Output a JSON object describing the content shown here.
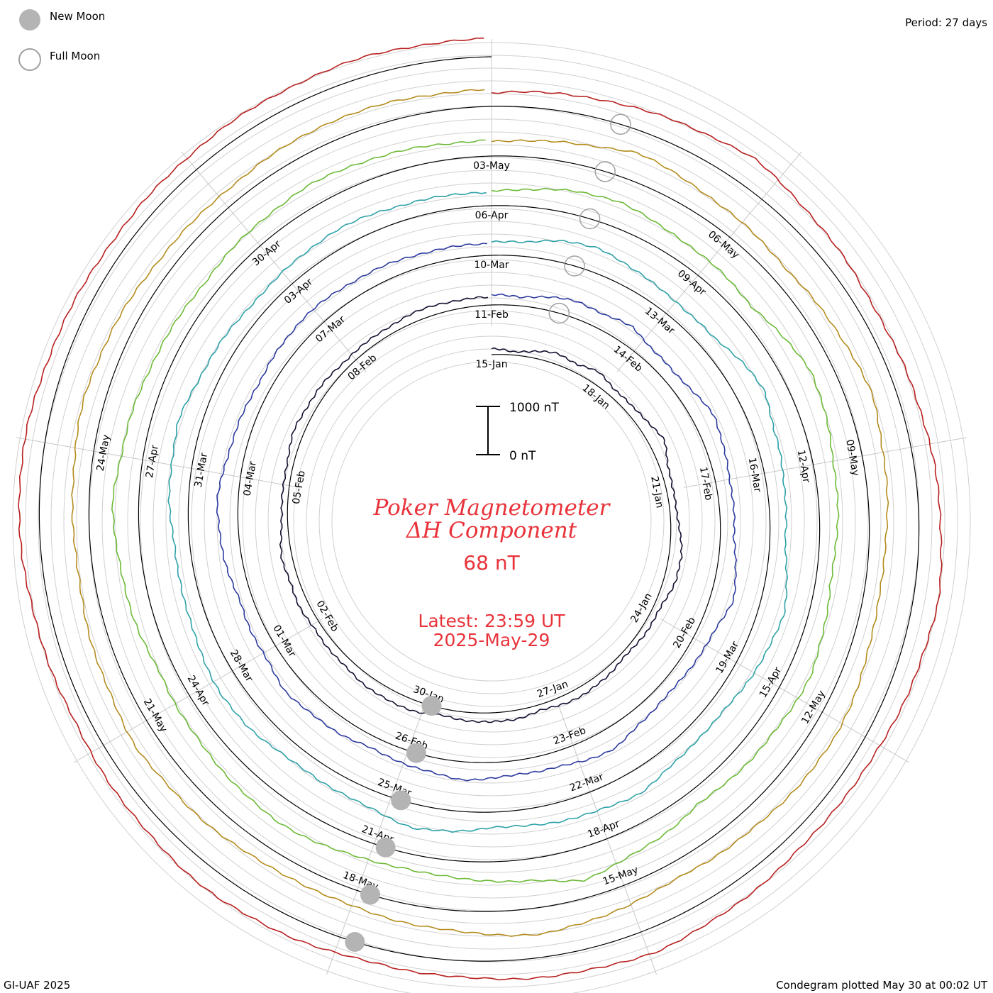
{
  "legend": {
    "new_moon_label": "New Moon",
    "full_moon_label": "Full Moon",
    "new_moon_fill": "#b4b4b4",
    "full_moon_stroke": "#a0a0a0"
  },
  "period_label": "Period: 27 days",
  "footer": {
    "credit": "GI-UAF 2025",
    "plotted": "Condegram plotted May 30 at 00:02 UT"
  },
  "title": {
    "line1": "Poker Magnetometer",
    "line2": "ΔH Component",
    "value": "68 nT",
    "latest": "Latest: 23:59 UT",
    "date": "2025-May-29",
    "color": "#e8333a"
  },
  "scale_bar": {
    "top_label": "1000 nT",
    "bottom_label": "0 nT"
  },
  "chart_data": {
    "type": "line",
    "period_days": 27,
    "units": "nT",
    "scale_nt": [
      0,
      1000
    ],
    "series": [
      {
        "color": "#141232",
        "values": [
          120,
          60,
          140,
          210,
          170,
          240,
          160,
          150,
          220,
          300,
          180,
          120,
          140,
          180,
          260,
          240,
          150,
          130,
          110,
          90,
          140,
          180,
          150,
          120,
          170,
          190,
          160,
          140,
          200,
          230,
          210,
          180,
          160,
          150,
          190,
          170,
          220,
          140,
          120,
          110,
          150,
          200,
          180,
          160,
          140,
          130,
          150,
          170,
          190,
          160
        ]
      },
      {
        "color": "#2c3b9e",
        "values": [
          200,
          180,
          260,
          340,
          300,
          380,
          260,
          240,
          320,
          420,
          360,
          280,
          300,
          260,
          380,
          460,
          340,
          280,
          260,
          240,
          300,
          420,
          380,
          300,
          280,
          320,
          360,
          300,
          260,
          240,
          300,
          340,
          380,
          300,
          280,
          260,
          320,
          380,
          420,
          360,
          300,
          280,
          260,
          300,
          340,
          320,
          300,
          280,
          260,
          240
        ]
      },
      {
        "color": "#2fa2a8",
        "values": [
          260,
          300,
          420,
          500,
          380,
          340,
          280,
          320,
          460,
          560,
          420,
          380,
          340,
          300,
          420,
          520,
          460,
          380,
          320,
          300,
          360,
          460,
          420,
          380,
          340,
          300,
          420,
          480,
          360,
          320,
          300,
          340,
          420,
          460,
          380,
          340,
          300,
          320,
          380,
          420,
          460,
          380,
          340,
          300,
          280,
          320,
          360,
          340,
          300,
          280
        ]
      },
      {
        "color": "#6dba38",
        "values": [
          300,
          360,
          460,
          520,
          420,
          380,
          340,
          300,
          420,
          580,
          500,
          420,
          380,
          340,
          300,
          380,
          460,
          420,
          380,
          340,
          300,
          420,
          520,
          640,
          460,
          380,
          340,
          300,
          360,
          420,
          480,
          420,
          380,
          340,
          300,
          380,
          420,
          480,
          520,
          440,
          400,
          360,
          320,
          300,
          340,
          380,
          420,
          400,
          360,
          320
        ]
      },
      {
        "color": "#b48c1e",
        "values": [
          300,
          340,
          420,
          560,
          480,
          400,
          360,
          320,
          380,
          460,
          520,
          440,
          380,
          340,
          300,
          360,
          420,
          480,
          440,
          400,
          360,
          320,
          380,
          460,
          540,
          460,
          400,
          360,
          320,
          300,
          340,
          380,
          420,
          460,
          400,
          360,
          320,
          300,
          340,
          380,
          420,
          380,
          340,
          300,
          280,
          300,
          340,
          380,
          360,
          340
        ]
      },
      {
        "color": "#b82020",
        "values": [
          280,
          320,
          380,
          420,
          480,
          560,
          460,
          380,
          320,
          300,
          340,
          380,
          420,
          460,
          500,
          440,
          380,
          340,
          300,
          320,
          360,
          420,
          480,
          440,
          400,
          360,
          320,
          300,
          340,
          380,
          420,
          380,
          340,
          300,
          280,
          300,
          340,
          380,
          420,
          400,
          360,
          320,
          300,
          280,
          300,
          320,
          340,
          360,
          380,
          360
        ]
      }
    ]
  },
  "rings": [
    {
      "labels": [
        "15-Jan",
        "18-Jan",
        "21-Jan",
        "24-Jan",
        "27-Jan",
        "30-Jan",
        "02-Feb",
        "05-Feb",
        "08-Feb"
      ]
    },
    {
      "labels": [
        "11-Feb",
        "14-Feb",
        "17-Feb",
        "20-Feb",
        "23-Feb",
        "26-Feb",
        "01-Mar",
        "04-Mar",
        "07-Mar"
      ]
    },
    {
      "labels": [
        "10-Mar",
        "13-Mar",
        "16-Mar",
        "19-Mar",
        "22-Mar",
        "25-Mar",
        "28-Mar",
        "31-Mar",
        "03-Apr"
      ]
    },
    {
      "labels": [
        "06-Apr",
        "09-Apr",
        "12-Apr",
        "15-Apr",
        "18-Apr",
        "21-Apr",
        "24-Apr",
        "27-Apr",
        "30-Apr"
      ]
    },
    {
      "labels": [
        "03-May",
        "06-May",
        "09-May",
        "12-May",
        "15-May",
        "18-May",
        "21-May",
        "24-May"
      ]
    }
  ]
}
